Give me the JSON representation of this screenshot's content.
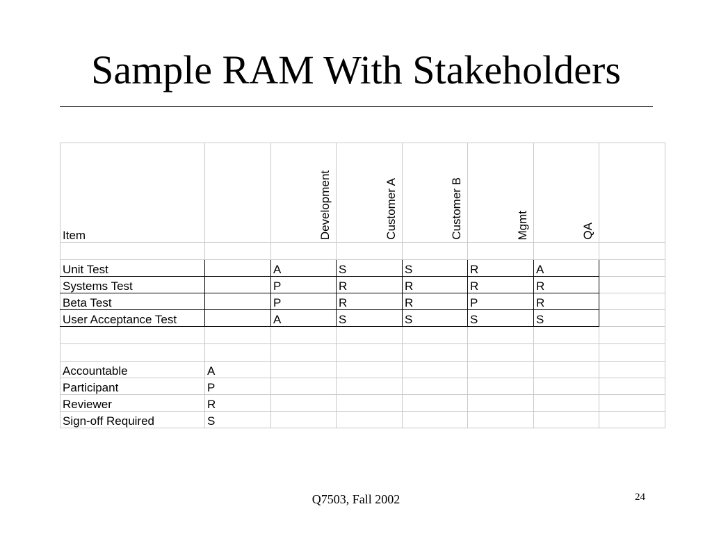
{
  "slide": {
    "title": "Sample RAM With Stakeholders",
    "footer_center": "Q7503, Fall 2002",
    "page_number": "24"
  },
  "table": {
    "item_header": "Item",
    "stakeholders": [
      "Development",
      "Customer A",
      "Customer B",
      "Mgmt",
      "QA"
    ],
    "rows": [
      {
        "item": "Unit Test",
        "values": [
          "A",
          "S",
          "S",
          "R",
          "A"
        ]
      },
      {
        "item": "Systems Test",
        "values": [
          "P",
          "R",
          "R",
          "R",
          "R"
        ]
      },
      {
        "item": "Beta Test",
        "values": [
          "P",
          "R",
          "R",
          "P",
          "R"
        ]
      },
      {
        "item": "User Acceptance Test",
        "values": [
          "A",
          "S",
          "S",
          "S",
          "S"
        ]
      }
    ]
  },
  "legend": [
    {
      "label": "Accountable",
      "code": "A"
    },
    {
      "label": "Participant",
      "code": "P"
    },
    {
      "label": "Reviewer",
      "code": "R"
    },
    {
      "label": "Sign-off Required",
      "code": "S"
    }
  ]
}
